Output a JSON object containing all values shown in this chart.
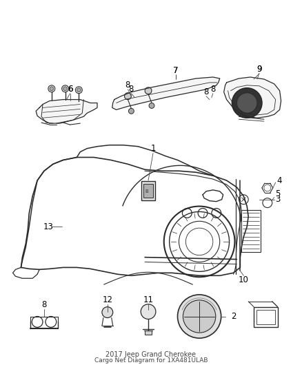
{
  "title": "2017 Jeep Grand Cherokee",
  "subtitle": "Cargo Net Diagram for 1XA481ULAB",
  "background_color": "#ffffff",
  "line_color": "#2a2a2a",
  "label_color": "#000000",
  "label_fontsize": 8.5,
  "fig_width": 4.38,
  "fig_height": 5.33,
  "dpi": 100
}
